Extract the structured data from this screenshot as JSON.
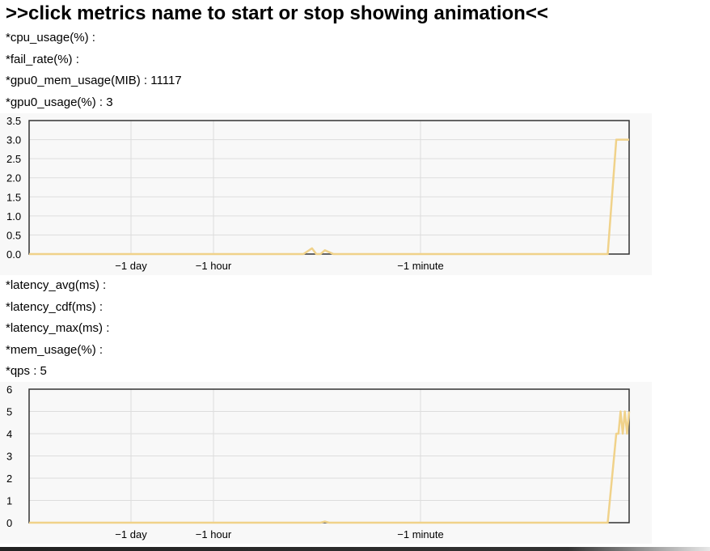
{
  "header": {
    "title": ">>click metrics name to start or stop showing animation<<"
  },
  "metrics": [
    {
      "label": "*cpu_usage(%) :",
      "value": ""
    },
    {
      "label": "*fail_rate(%) :",
      "value": ""
    },
    {
      "label": "*gpu0_mem_usage(MIB) :",
      "value": "11117"
    },
    {
      "label": "*gpu0_usage(%) :",
      "value": "3"
    },
    {
      "label": "*latency_avg(ms) :",
      "value": ""
    },
    {
      "label": "*latency_cdf(ms) :",
      "value": ""
    },
    {
      "label": "*latency_max(ms) :",
      "value": ""
    },
    {
      "label": "*mem_usage(%) :",
      "value": ""
    },
    {
      "label": "*qps :",
      "value": "5"
    }
  ],
  "chart_data": [
    {
      "type": "line",
      "metric": "gpu0_usage(%)",
      "yticks": [
        "3.5",
        "3.0",
        "2.5",
        "2.0",
        "1.5",
        "1.0",
        "0.5",
        "0.0"
      ],
      "ylim": [
        0,
        3.5
      ],
      "xticks": [
        "−1 day",
        "−1 hour",
        "−1 minute"
      ],
      "line_color": "#f0d28a",
      "series": [
        {
          "name": "gpu0_usage",
          "x": [
            0,
            0.64,
            0.66,
            0.67,
            0.68,
            0.69,
            0.71,
            0.72,
            1.35,
            1.37,
            1.4
          ],
          "y": [
            0,
            0,
            0.15,
            0,
            0,
            0.1,
            0,
            0,
            0,
            3,
            3
          ]
        }
      ]
    },
    {
      "type": "line",
      "metric": "qps",
      "yticks": [
        "6",
        "5",
        "4",
        "3",
        "2",
        "1",
        "0"
      ],
      "ylim": [
        0,
        6
      ],
      "xticks": [
        "−1 day",
        "−1 hour",
        "−1 minute"
      ],
      "line_color": "#f0d28a",
      "series": [
        {
          "name": "qps",
          "x": [
            0,
            0.68,
            0.69,
            0.7,
            1.35,
            1.37,
            1.375,
            1.38,
            1.385,
            1.39,
            1.395,
            1.4
          ],
          "y": [
            0,
            0,
            0.05,
            0,
            0,
            4,
            4,
            5,
            4,
            5,
            4,
            5
          ]
        }
      ]
    }
  ]
}
